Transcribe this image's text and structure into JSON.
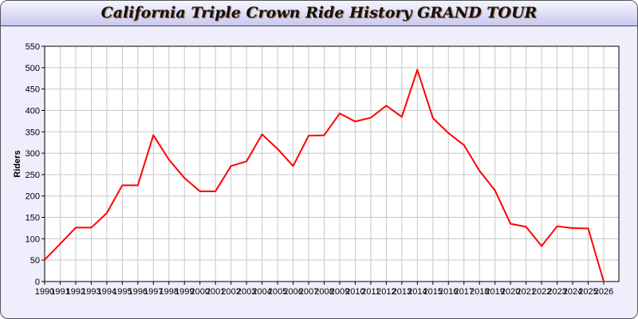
{
  "chart_data": {
    "type": "line",
    "title": "California Triple Crown Ride History GRAND TOUR",
    "xlabel": "",
    "ylabel": "Riders",
    "ylim": [
      0,
      550
    ],
    "yticks": [
      0,
      50,
      100,
      150,
      200,
      250,
      300,
      350,
      400,
      450,
      500,
      550
    ],
    "grid": true,
    "x": [
      1990,
      1991,
      1992,
      1993,
      1994,
      1995,
      1996,
      1997,
      1998,
      1999,
      2000,
      2001,
      2002,
      2003,
      2004,
      2005,
      2006,
      2007,
      2008,
      2009,
      2010,
      2011,
      2012,
      2013,
      2014,
      2015,
      2016,
      2017,
      2018,
      2019,
      2020,
      2021,
      2022,
      2023,
      2024,
      2025,
      2026
    ],
    "series": [
      {
        "values": [
          51,
          88,
          126,
          126,
          160,
          225,
          225,
          342,
          285,
          242,
          211,
          211,
          270,
          281,
          344,
          310,
          270,
          341,
          342,
          393,
          374,
          383,
          411,
          385,
          495,
          382,
          347,
          319,
          259,
          213,
          135,
          128,
          83,
          129,
          125,
          124,
          0
        ],
        "color": "#ff0000"
      }
    ]
  }
}
